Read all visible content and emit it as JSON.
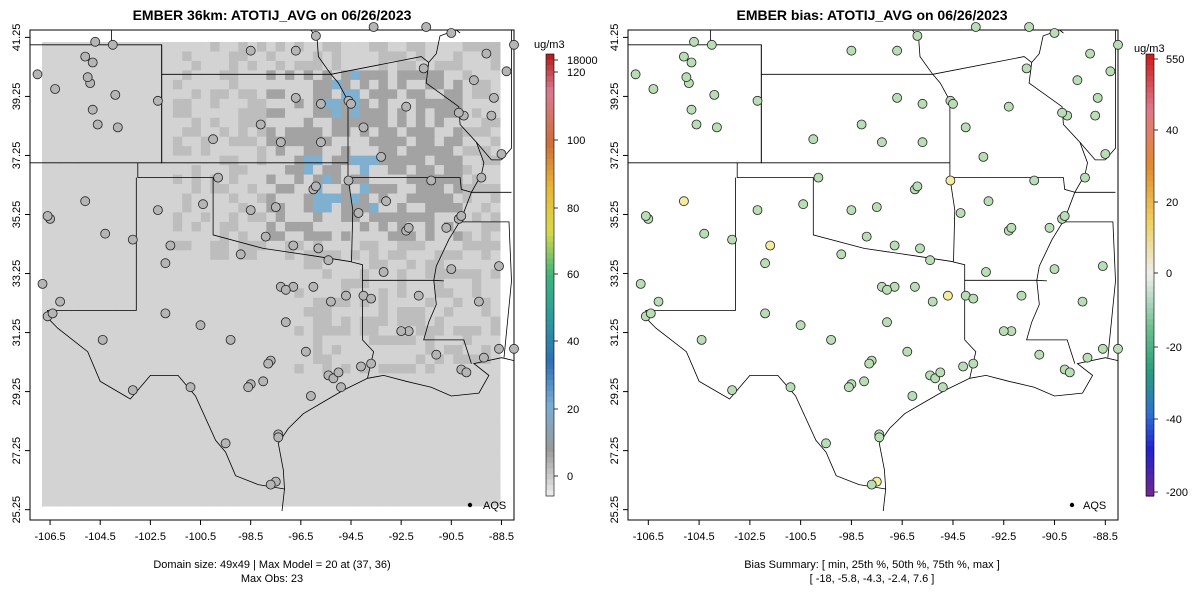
{
  "left_panel": {
    "title": "EMBER 36km: ATOTIJ_AVG on 06/26/2023",
    "footer_line1": "Domain size: 49x49 | Max Model = 20 at (37, 36)",
    "footer_line2": "Max Obs: 23",
    "legend_label": "AQS",
    "colorbar_unit": "ug/m3",
    "colorbar_ticks": [
      "18000",
      "120",
      "100",
      "80",
      "60",
      "40",
      "20",
      "0"
    ],
    "colorbar_values": [
      18000,
      120,
      100,
      80,
      60,
      40,
      20,
      0
    ]
  },
  "right_panel": {
    "title": "EMBER bias: ATOTIJ_AVG on 06/26/2023",
    "footer_line1": "Bias Summary: [ min, 25th %, 50th %, 75th %, max ]",
    "footer_line2": "[ -18,   -5.8,   -4.3,   -2.4,   7.6 ]",
    "legend_label": "AQS",
    "colorbar_unit": "ug/m3",
    "colorbar_ticks": [
      "550",
      "40",
      "20",
      "0",
      "-20",
      "-40",
      "-200"
    ],
    "colorbar_values": [
      550,
      40,
      20,
      0,
      -20,
      -40,
      -200
    ]
  },
  "axes": {
    "x_ticks": [
      "-106.5",
      "-104.5",
      "-102.5",
      "-100.5",
      "-98.5",
      "-96.5",
      "-94.5",
      "-92.5",
      "-90.5",
      "-88.5"
    ],
    "y_ticks": [
      "41.25",
      "39.25",
      "37.25",
      "35.25",
      "33.25",
      "31.25",
      "29.25",
      "27.25",
      "25.25"
    ],
    "xlim": [
      -107.3,
      -88.0
    ],
    "ylim": [
      24.9,
      41.5
    ]
  },
  "colors": {
    "model_gray_light": "#d3d3d3",
    "model_gray_mid": "#bdbdbd",
    "model_gray_dark": "#a3a3a3",
    "model_blue": "#7fb0cf",
    "obs_gray": "#b5b5b5",
    "bias_green": "#b9ddb4",
    "bias_yellow": "#f3eba0"
  },
  "sites": [
    [
      -106.6,
      31.8
    ],
    [
      -106.4,
      31.9
    ],
    [
      -106.5,
      35.1
    ],
    [
      -106.6,
      35.2
    ],
    [
      -105.1,
      35.7
    ],
    [
      -104.6,
      38.3
    ],
    [
      -104.8,
      38.8
    ],
    [
      -104.9,
      39.7
    ],
    [
      -105.0,
      39.9
    ],
    [
      -104.8,
      40.4
    ],
    [
      -105.1,
      40.6
    ],
    [
      -104.7,
      41.1
    ],
    [
      -104.0,
      41.0
    ],
    [
      -103.9,
      39.3
    ],
    [
      -103.8,
      38.2
    ],
    [
      -102.2,
      35.4
    ],
    [
      -101.9,
      33.6
    ],
    [
      -101.9,
      31.9
    ],
    [
      -100.5,
      31.5
    ],
    [
      -98.5,
      35.4
    ],
    [
      -97.5,
      35.5
    ],
    [
      -96.0,
      36.1
    ],
    [
      -95.9,
      36.2
    ],
    [
      -97.3,
      37.7
    ],
    [
      -95.7,
      39.0
    ],
    [
      -94.6,
      39.1
    ],
    [
      -94.5,
      39.0
    ],
    [
      -94.6,
      36.4
    ],
    [
      -93.3,
      37.2
    ],
    [
      -92.3,
      34.7
    ],
    [
      -92.2,
      34.8
    ],
    [
      -90.2,
      35.1
    ],
    [
      -90.1,
      35.2
    ],
    [
      -90.0,
      38.6
    ],
    [
      -90.2,
      38.7
    ],
    [
      -89.6,
      39.8
    ],
    [
      -88.9,
      38.6
    ],
    [
      -89.1,
      40.7
    ],
    [
      -88.3,
      40.1
    ],
    [
      -88.0,
      41.0
    ],
    [
      -91.5,
      41.6
    ],
    [
      -93.6,
      41.6
    ],
    [
      -95.9,
      41.3
    ],
    [
      -96.7,
      40.8
    ],
    [
      -98.5,
      40.8
    ],
    [
      -96.0,
      32.8
    ],
    [
      -96.8,
      32.8
    ],
    [
      -97.3,
      32.8
    ],
    [
      -97.1,
      32.7
    ],
    [
      -95.3,
      32.3
    ],
    [
      -94.7,
      32.5
    ],
    [
      -94.0,
      32.5
    ],
    [
      -93.7,
      32.4
    ],
    [
      -91.8,
      32.5
    ],
    [
      -92.2,
      31.3
    ],
    [
      -91.1,
      30.5
    ],
    [
      -90.1,
      30.0
    ],
    [
      -89.9,
      29.9
    ],
    [
      -89.2,
      30.4
    ],
    [
      -88.6,
      30.7
    ],
    [
      -88.0,
      30.7
    ],
    [
      -97.7,
      30.3
    ],
    [
      -97.8,
      30.2
    ],
    [
      -98.5,
      29.5
    ],
    [
      -98.6,
      29.4
    ],
    [
      -95.4,
      29.8
    ],
    [
      -95.2,
      29.7
    ],
    [
      -95.0,
      29.9
    ],
    [
      -94.9,
      29.4
    ],
    [
      -94.1,
      30.1
    ],
    [
      -93.7,
      30.2
    ],
    [
      -97.4,
      27.8
    ],
    [
      -97.4,
      27.7
    ],
    [
      -97.5,
      26.2
    ],
    [
      -97.7,
      26.1
    ],
    [
      -99.5,
      27.5
    ],
    [
      -103.2,
      29.3
    ],
    [
      -104.4,
      31.0
    ],
    [
      -106.1,
      32.3
    ],
    [
      -90.5,
      33.4
    ],
    [
      -88.6,
      33.5
    ],
    [
      -89.4,
      32.3
    ],
    [
      -93.2,
      33.3
    ],
    [
      -92.5,
      31.3
    ],
    [
      -96.8,
      34.2
    ],
    [
      -95.4,
      33.7
    ],
    [
      -97.9,
      34.5
    ],
    [
      -98.9,
      33.9
    ],
    [
      -99.3,
      31.0
    ],
    [
      -97.1,
      31.6
    ],
    [
      -96.3,
      30.6
    ],
    [
      -98.0,
      29.6
    ],
    [
      -96.1,
      29.1
    ],
    [
      -100.9,
      29.4
    ],
    [
      -100.4,
      35.6
    ],
    [
      -99.8,
      36.5
    ],
    [
      -101.7,
      34.2
    ],
    [
      -103.2,
      34.4
    ],
    [
      -104.3,
      34.6
    ],
    [
      -106.8,
      32.9
    ],
    [
      -107.0,
      40.0
    ],
    [
      -106.3,
      39.5
    ],
    [
      -102.2,
      39.1
    ],
    [
      -100.0,
      37.8
    ],
    [
      -98.1,
      38.3
    ],
    [
      -96.7,
      39.2
    ],
    [
      -95.7,
      37.7
    ],
    [
      -94.0,
      38.2
    ],
    [
      -92.3,
      38.9
    ],
    [
      -91.6,
      40.2
    ],
    [
      -90.5,
      41.4
    ],
    [
      -88.8,
      39.2
    ],
    [
      -88.5,
      37.3
    ],
    [
      -89.3,
      36.5
    ],
    [
      -91.3,
      36.4
    ],
    [
      -93.1,
      35.7
    ],
    [
      -94.2,
      35.3
    ],
    [
      -90.7,
      34.8
    ],
    [
      -95.8,
      34.1
    ]
  ]
}
